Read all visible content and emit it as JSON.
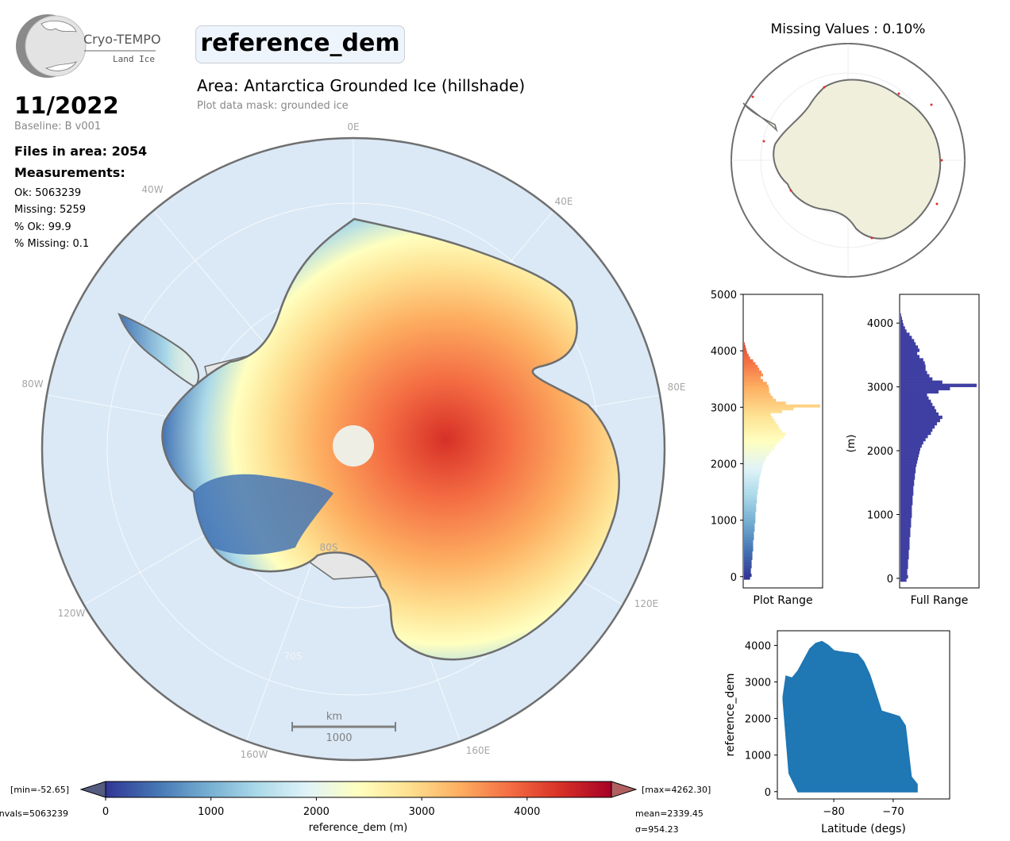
{
  "logo": {
    "name": "Cryo-TEMPO",
    "subtitle": "Land Ice"
  },
  "header": {
    "variable": "reference_dem",
    "area": "Area: Antarctica Grounded Ice (hillshade)",
    "mask": "Plot data mask: grounded ice",
    "date": "11/2022",
    "baseline": "Baseline: B v001",
    "files": "Files in area: 2054",
    "measurements_label": "Measurements:",
    "ok": "Ok: 5063239",
    "missing": "Missing: 5259",
    "pct_ok": "% Ok: 99.9",
    "pct_missing": "% Missing: 0.1"
  },
  "map": {
    "lon_labels": [
      "0E",
      "40E",
      "80E",
      "120E",
      "160E",
      "160W",
      "120W",
      "80W",
      "40W"
    ],
    "lat_labels": [
      "80S",
      "70S"
    ],
    "scalebar_unit": "km",
    "scalebar_value": "1000",
    "colors": {
      "ocean": "#dbe9f6",
      "coast": "#6e6e6e",
      "ice_shelf": "#e6e6e6"
    }
  },
  "missing_map": {
    "title": "Missing Values : 0.10%",
    "land_color": "#efefdc",
    "missing_color": "#e03030"
  },
  "colorbar": {
    "min_label": "[min=-52.65]",
    "max_label": "[max=4262.30]",
    "nvals_label": "nvals=5063239",
    "mean_label": "mean=2339.45",
    "sigma_label": "σ=954.23",
    "xlabel": "reference_dem (m)",
    "ticks": [
      0,
      1000,
      2000,
      3000,
      4000
    ],
    "range": [
      0,
      4800
    ],
    "colors": [
      "#313695",
      "#4575b4",
      "#74add1",
      "#abd9e9",
      "#e0f3f8",
      "#ffffbf",
      "#fee090",
      "#fdae61",
      "#f46d43",
      "#d73027",
      "#a50026"
    ]
  },
  "chart_data": [
    {
      "type": "bar",
      "orientation": "horizontal",
      "title": "",
      "xlabel": "Plot Range",
      "ylabel": "",
      "ylim": [
        -200,
        5000
      ],
      "yticks": [
        0,
        1000,
        2000,
        3000,
        4000,
        5000
      ],
      "bin_width": 50,
      "y": [
        -50,
        0,
        50,
        100,
        150,
        200,
        250,
        300,
        350,
        400,
        450,
        500,
        550,
        600,
        650,
        700,
        750,
        800,
        850,
        900,
        950,
        1000,
        1050,
        1100,
        1150,
        1200,
        1250,
        1300,
        1350,
        1400,
        1450,
        1500,
        1550,
        1600,
        1650,
        1700,
        1750,
        1800,
        1850,
        1900,
        1950,
        2000,
        2050,
        2100,
        2150,
        2200,
        2250,
        2300,
        2350,
        2400,
        2450,
        2500,
        2550,
        2600,
        2650,
        2700,
        2750,
        2800,
        2850,
        2900,
        2950,
        3000,
        3050,
        3100,
        3150,
        3200,
        3250,
        3300,
        3350,
        3400,
        3450,
        3500,
        3550,
        3600,
        3650,
        3700,
        3750,
        3800,
        3850,
        3900,
        3950,
        4000,
        4050,
        4100
      ],
      "values": [
        0.08,
        0.1,
        0.09,
        0.09,
        0.1,
        0.1,
        0.1,
        0.11,
        0.11,
        0.11,
        0.12,
        0.12,
        0.12,
        0.12,
        0.13,
        0.13,
        0.13,
        0.14,
        0.14,
        0.14,
        0.15,
        0.15,
        0.15,
        0.15,
        0.16,
        0.16,
        0.16,
        0.17,
        0.17,
        0.17,
        0.18,
        0.18,
        0.19,
        0.19,
        0.2,
        0.2,
        0.21,
        0.22,
        0.23,
        0.24,
        0.25,
        0.26,
        0.28,
        0.3,
        0.33,
        0.36,
        0.4,
        0.42,
        0.45,
        0.48,
        0.52,
        0.55,
        0.5,
        0.47,
        0.45,
        0.42,
        0.4,
        0.37,
        0.35,
        0.5,
        0.65,
        1.0,
        0.55,
        0.42,
        0.38,
        0.35,
        0.33,
        0.33,
        0.32,
        0.3,
        0.25,
        0.22,
        0.25,
        0.23,
        0.2,
        0.18,
        0.15,
        0.12,
        0.08,
        0.06,
        0.04,
        0.03,
        0.02,
        0.01
      ]
    },
    {
      "type": "bar",
      "orientation": "horizontal",
      "title": "",
      "xlabel": "Full Range",
      "ylabel": "(m)",
      "ylim": [
        -150,
        4450
      ],
      "yticks": [
        0,
        1000,
        2000,
        3000,
        4000
      ],
      "bin_width": 50,
      "y": [
        -50,
        0,
        50,
        100,
        150,
        200,
        250,
        300,
        350,
        400,
        450,
        500,
        550,
        600,
        650,
        700,
        750,
        800,
        850,
        900,
        950,
        1000,
        1050,
        1100,
        1150,
        1200,
        1250,
        1300,
        1350,
        1400,
        1450,
        1500,
        1550,
        1600,
        1650,
        1700,
        1750,
        1800,
        1850,
        1900,
        1950,
        2000,
        2050,
        2100,
        2150,
        2200,
        2250,
        2300,
        2350,
        2400,
        2450,
        2500,
        2550,
        2600,
        2650,
        2700,
        2750,
        2800,
        2850,
        2900,
        2950,
        3000,
        3050,
        3100,
        3150,
        3200,
        3250,
        3300,
        3350,
        3400,
        3450,
        3500,
        3550,
        3600,
        3650,
        3700,
        3750,
        3800,
        3850,
        3900,
        3950,
        4000,
        4050,
        4100
      ],
      "values": [
        0.08,
        0.1,
        0.09,
        0.09,
        0.1,
        0.1,
        0.1,
        0.11,
        0.11,
        0.11,
        0.12,
        0.12,
        0.12,
        0.12,
        0.13,
        0.13,
        0.13,
        0.14,
        0.14,
        0.14,
        0.15,
        0.15,
        0.15,
        0.15,
        0.16,
        0.16,
        0.16,
        0.17,
        0.17,
        0.17,
        0.18,
        0.18,
        0.19,
        0.19,
        0.2,
        0.2,
        0.21,
        0.22,
        0.23,
        0.24,
        0.25,
        0.26,
        0.28,
        0.3,
        0.33,
        0.36,
        0.4,
        0.42,
        0.45,
        0.48,
        0.52,
        0.55,
        0.5,
        0.47,
        0.45,
        0.42,
        0.4,
        0.37,
        0.35,
        0.5,
        0.65,
        1.0,
        0.55,
        0.42,
        0.38,
        0.35,
        0.33,
        0.33,
        0.32,
        0.3,
        0.25,
        0.22,
        0.25,
        0.23,
        0.2,
        0.18,
        0.15,
        0.12,
        0.08,
        0.06,
        0.04,
        0.03,
        0.02,
        0.01
      ],
      "color": "#3f3fa3"
    },
    {
      "type": "scatter",
      "title": "",
      "xlabel": "Latitude (degs)",
      "ylabel": "reference_dem",
      "xlim": [
        -89.5,
        -60.5
      ],
      "ylim": [
        -200,
        4400
      ],
      "xticks": [
        -80,
        -70
      ],
      "yticks": [
        0,
        1000,
        2000,
        3000,
        4000
      ],
      "color": "#1f77b4",
      "upper_envelope": [
        [
          -88.5,
          2600
        ],
        [
          -88,
          3150
        ],
        [
          -87,
          3100
        ],
        [
          -86,
          3300
        ],
        [
          -85,
          3600
        ],
        [
          -84,
          3900
        ],
        [
          -83,
          4050
        ],
        [
          -82,
          4100
        ],
        [
          -81,
          4000
        ],
        [
          -80,
          3850
        ],
        [
          -79,
          3820
        ],
        [
          -78,
          3800
        ],
        [
          -77,
          3780
        ],
        [
          -76,
          3750
        ],
        [
          -75,
          3550
        ],
        [
          -74,
          3200
        ],
        [
          -73,
          2700
        ],
        [
          -72,
          2200
        ],
        [
          -71,
          2150
        ],
        [
          -70,
          2100
        ],
        [
          -69,
          2050
        ],
        [
          -68,
          1800
        ],
        [
          -67,
          400
        ],
        [
          -66,
          200
        ]
      ],
      "lower_envelope": [
        [
          -88.5,
          2500
        ],
        [
          -87.5,
          500
        ],
        [
          -86,
          0
        ],
        [
          -70,
          0
        ],
        [
          -66,
          0
        ]
      ]
    }
  ]
}
